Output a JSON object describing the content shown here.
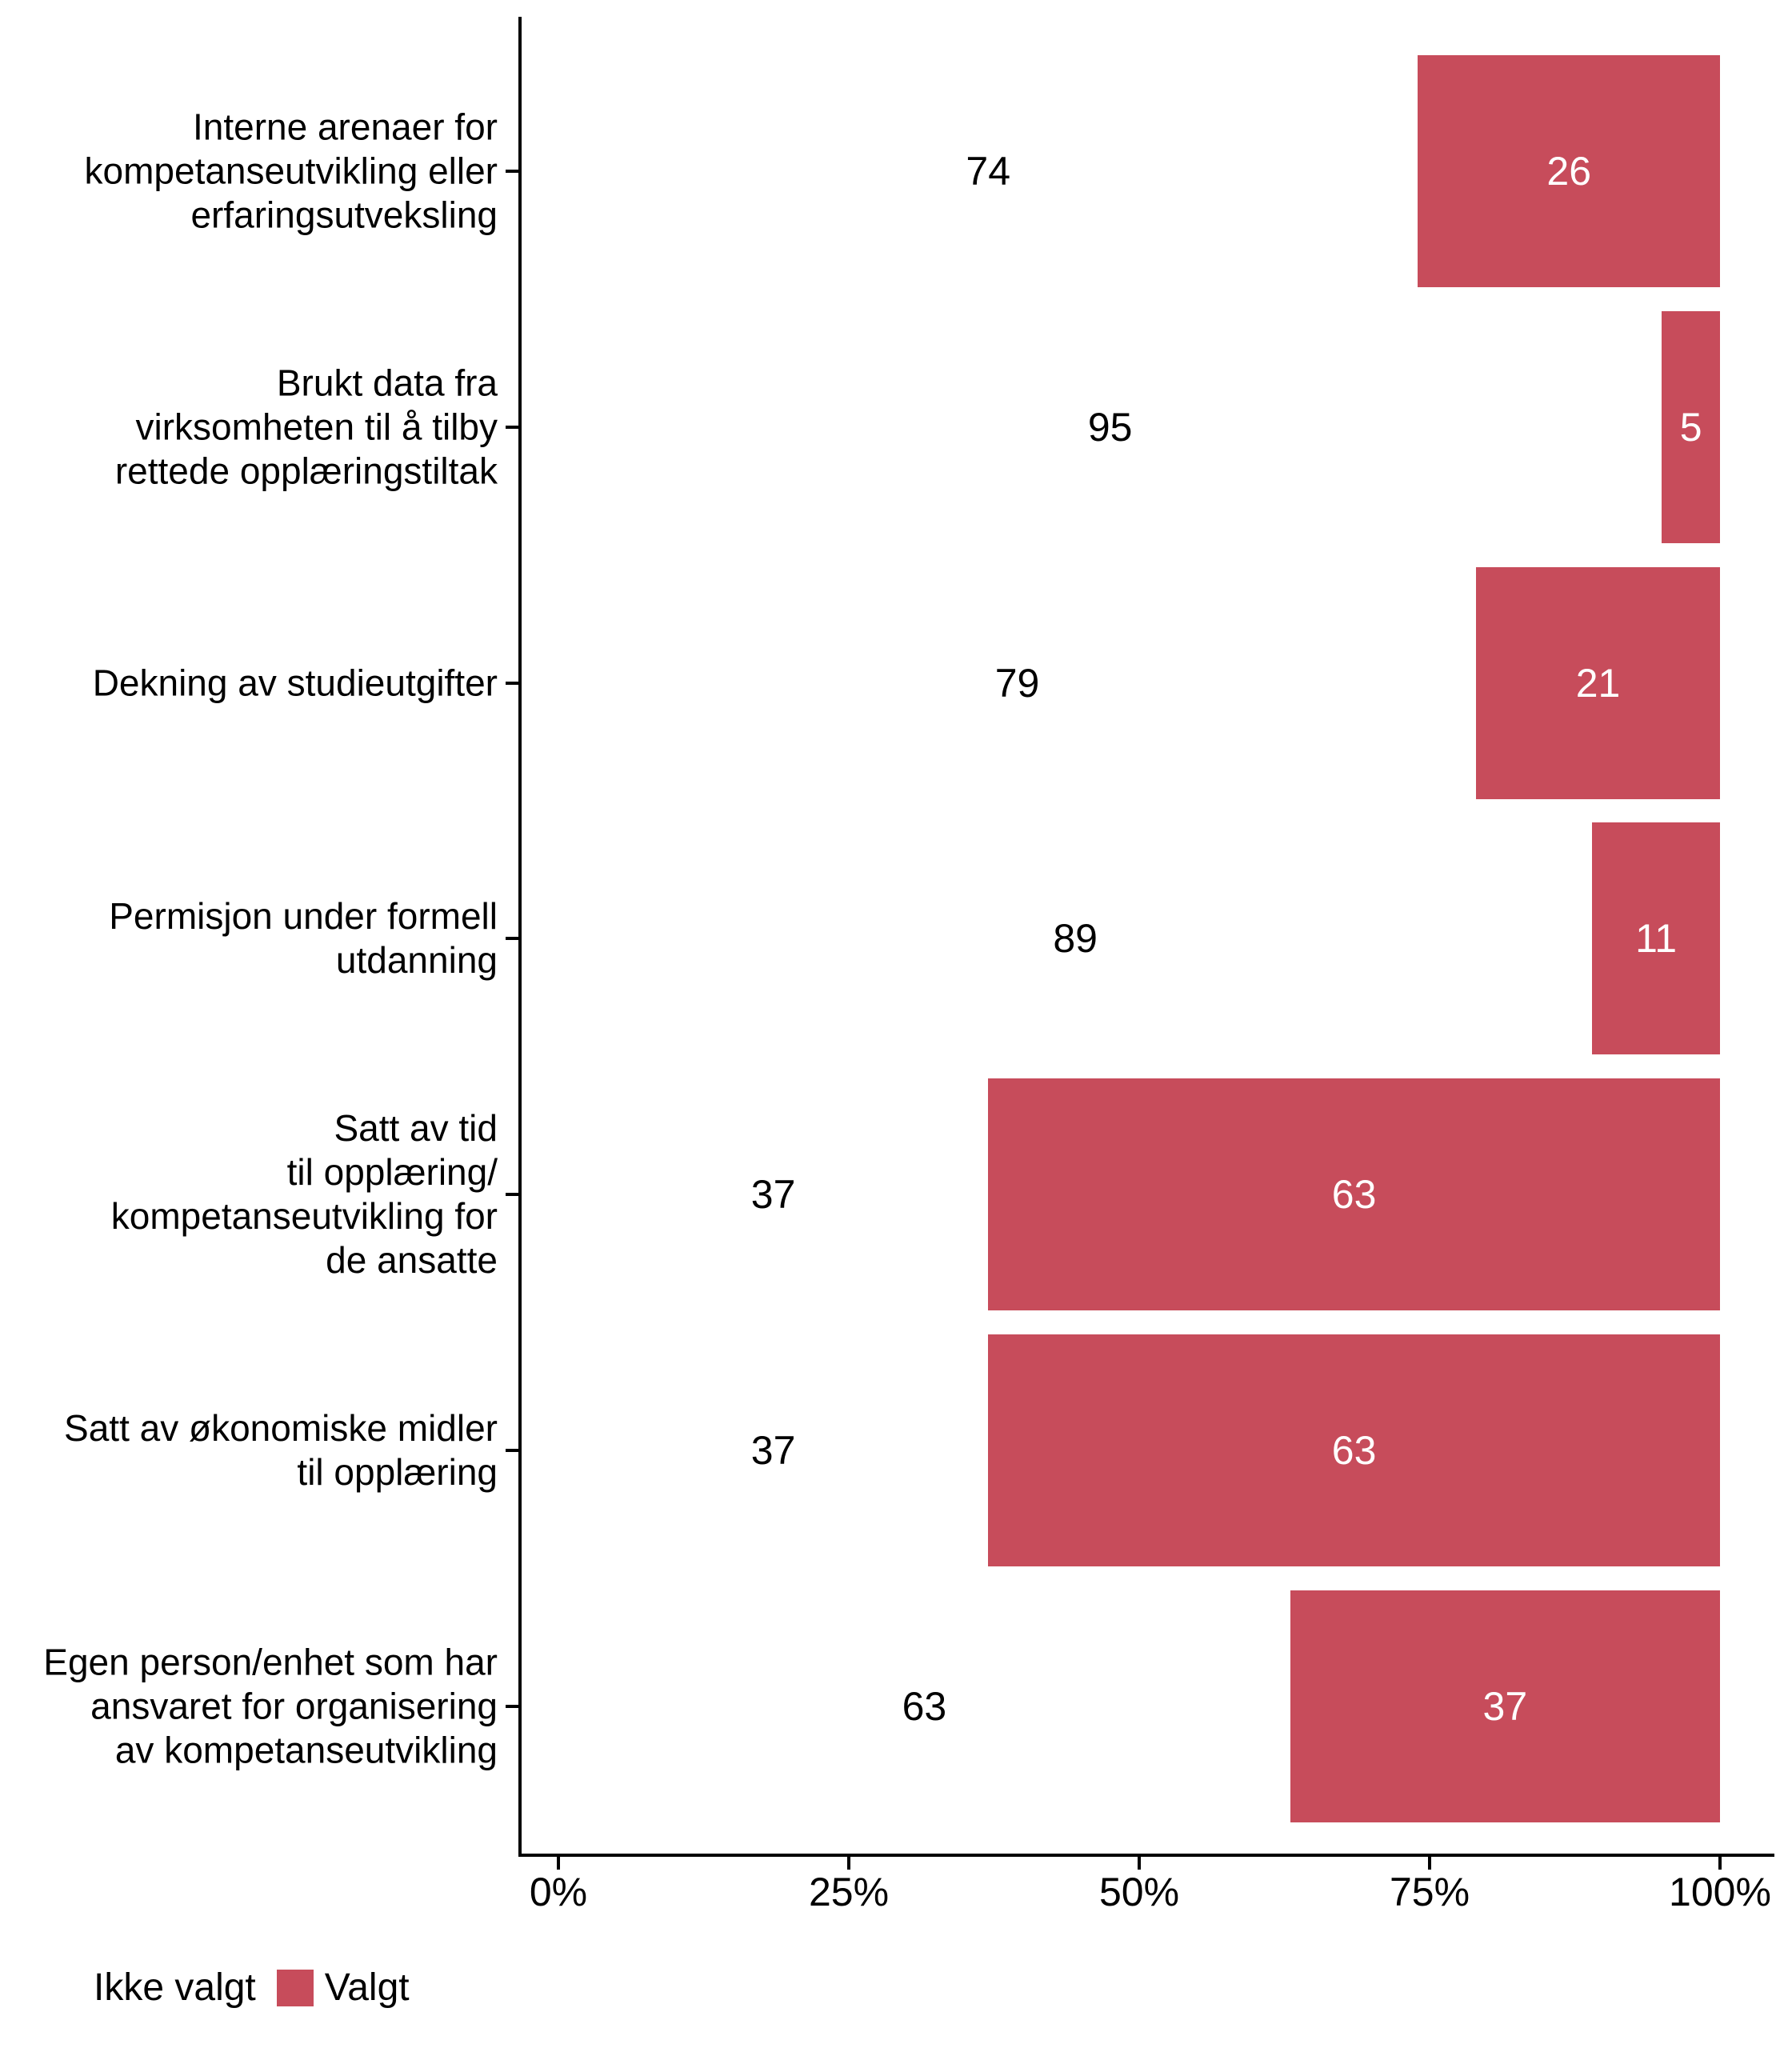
{
  "page": {
    "background": "#FFFFFF"
  },
  "colors": {
    "valgt_red": "#C74C5B",
    "ikke_valgt_white": "#FFFFFF",
    "text": "#000000",
    "axis": "#000000"
  },
  "chart_data": {
    "type": "bar",
    "orientation": "horizontal",
    "stacked": true,
    "value_unit": "percent",
    "title": "",
    "xlabel": "",
    "ylabel": "",
    "xlim": [
      0,
      100
    ],
    "grid": "off",
    "legend_position": "bottom-left",
    "x_ticks": [
      {
        "value": 0,
        "label": "0%"
      },
      {
        "value": 25,
        "label": "25%"
      },
      {
        "value": 50,
        "label": "50%"
      },
      {
        "value": 75,
        "label": "75%"
      },
      {
        "value": 100,
        "label": "100%"
      }
    ],
    "series": [
      {
        "name": "Ikke valgt",
        "color": "#FFFFFF",
        "values": [
          74,
          95,
          79,
          89,
          37,
          37,
          63
        ]
      },
      {
        "name": "Valgt",
        "color": "#C74C5B",
        "values": [
          26,
          5,
          21,
          11,
          63,
          63,
          37
        ]
      }
    ],
    "categories": [
      {
        "label_lines": [
          "Interne arenaer for",
          "kompetanseutvikling eller",
          "erfaringsutveksling"
        ],
        "ikke_valgt": 74,
        "valgt": 26
      },
      {
        "label_lines": [
          "Brukt data fra",
          "virksomheten til å tilby",
          "rettede opplæringstiltak"
        ],
        "ikke_valgt": 95,
        "valgt": 5
      },
      {
        "label_lines": [
          "Dekning av studieutgifter"
        ],
        "ikke_valgt": 79,
        "valgt": 21
      },
      {
        "label_lines": [
          "Permisjon under formell",
          "utdanning"
        ],
        "ikke_valgt": 89,
        "valgt": 11
      },
      {
        "label_lines": [
          "Satt av tid",
          "til opplæring/",
          "kompetanseutvikling for",
          "de ansatte"
        ],
        "ikke_valgt": 37,
        "valgt": 63
      },
      {
        "label_lines": [
          "Satt av økonomiske midler",
          "til opplæring"
        ],
        "ikke_valgt": 37,
        "valgt": 63
      },
      {
        "label_lines": [
          "Egen person/enhet som har",
          "ansvaret for organisering",
          "av kompetanseutvikling"
        ],
        "ikke_valgt": 63,
        "valgt": 37
      }
    ]
  },
  "legend": {
    "items": [
      {
        "label": "Ikke valgt",
        "color": "#FFFFFF"
      },
      {
        "label": "Valgt",
        "color": "#C74C5B"
      }
    ]
  }
}
